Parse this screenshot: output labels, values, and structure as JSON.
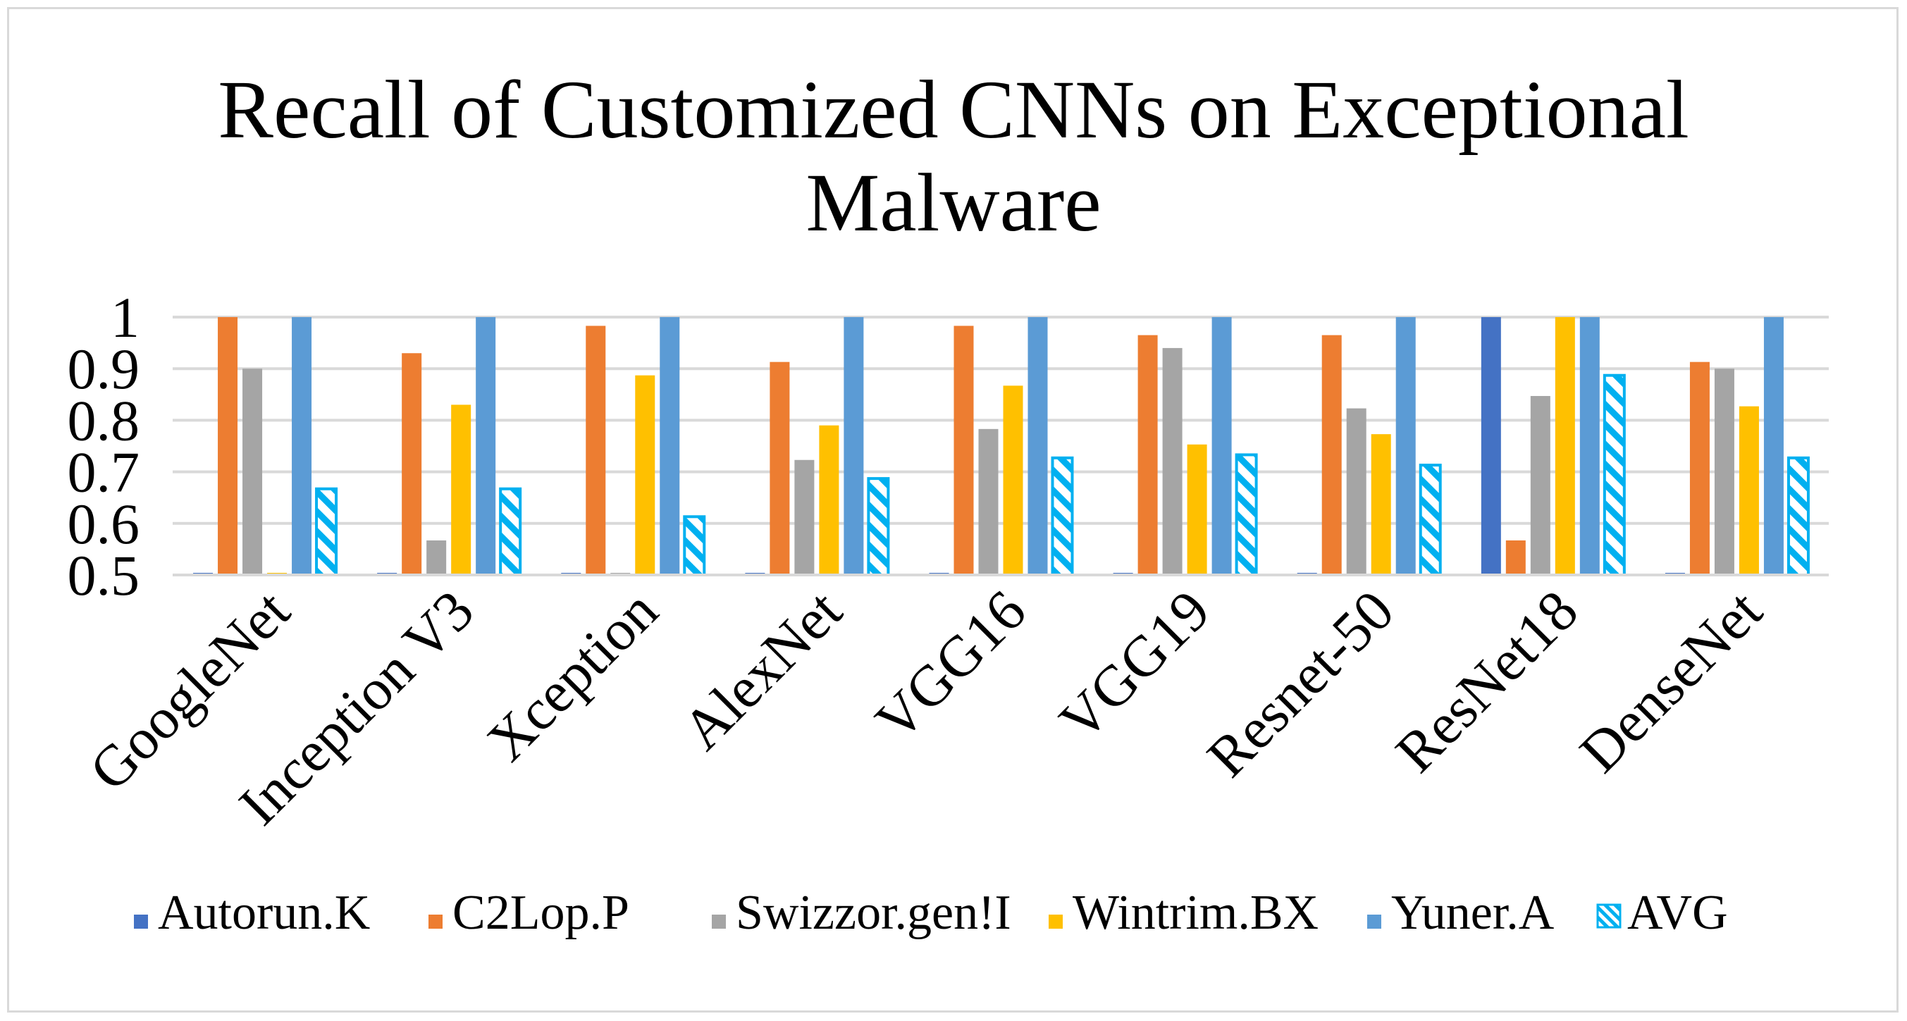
{
  "chart_data": {
    "type": "bar",
    "title_lines": [
      "Recall of Customized CNNs on Exceptional",
      "Malware"
    ],
    "categories": [
      "GoogleNet",
      "Inception V3",
      "Xception",
      "AlexNet",
      "VGG16",
      "VGG19",
      "Resnet-50",
      "ResNet18",
      "DenseNet"
    ],
    "series": [
      {
        "name": "Autorun.K",
        "color": "#4472C4",
        "pattern": "solid",
        "values": [
          0.5,
          0.5,
          0.5,
          0.5,
          0.5,
          0.5,
          0.5,
          1.0,
          0.5
        ]
      },
      {
        "name": "C2Lop.P",
        "color": "#ED7D31",
        "pattern": "solid",
        "values": [
          1.0,
          0.93,
          0.983,
          0.913,
          0.983,
          0.965,
          0.965,
          0.567,
          0.913
        ]
      },
      {
        "name": "Swizzor.gen!I",
        "color": "#A5A5A5",
        "pattern": "solid",
        "values": [
          0.9,
          0.567,
          0.5,
          0.723,
          0.783,
          0.94,
          0.823,
          0.847,
          0.9
        ]
      },
      {
        "name": "Wintrim.BX",
        "color": "#FFC000",
        "pattern": "solid",
        "values": [
          0.5,
          0.83,
          0.887,
          0.79,
          0.867,
          0.753,
          0.773,
          1.0,
          0.827
        ]
      },
      {
        "name": "Yuner.A",
        "color": "#5B9BD5",
        "pattern": "solid",
        "values": [
          1.0,
          1.0,
          1.0,
          1.0,
          1.0,
          1.0,
          1.0,
          1.0,
          1.0
        ]
      },
      {
        "name": "AVG",
        "color": "#00B0F0",
        "pattern": "hatched",
        "values": [
          0.667,
          0.667,
          0.613,
          0.687,
          0.727,
          0.733,
          0.713,
          0.887,
          0.727
        ]
      }
    ],
    "yticks": [
      "0.5",
      "0.6",
      "0.7",
      "0.8",
      "0.9",
      "1"
    ],
    "ylim": [
      0.5,
      1.0
    ],
    "xlabel": "",
    "ylabel": "",
    "grid": true,
    "legend_position": "bottom"
  }
}
